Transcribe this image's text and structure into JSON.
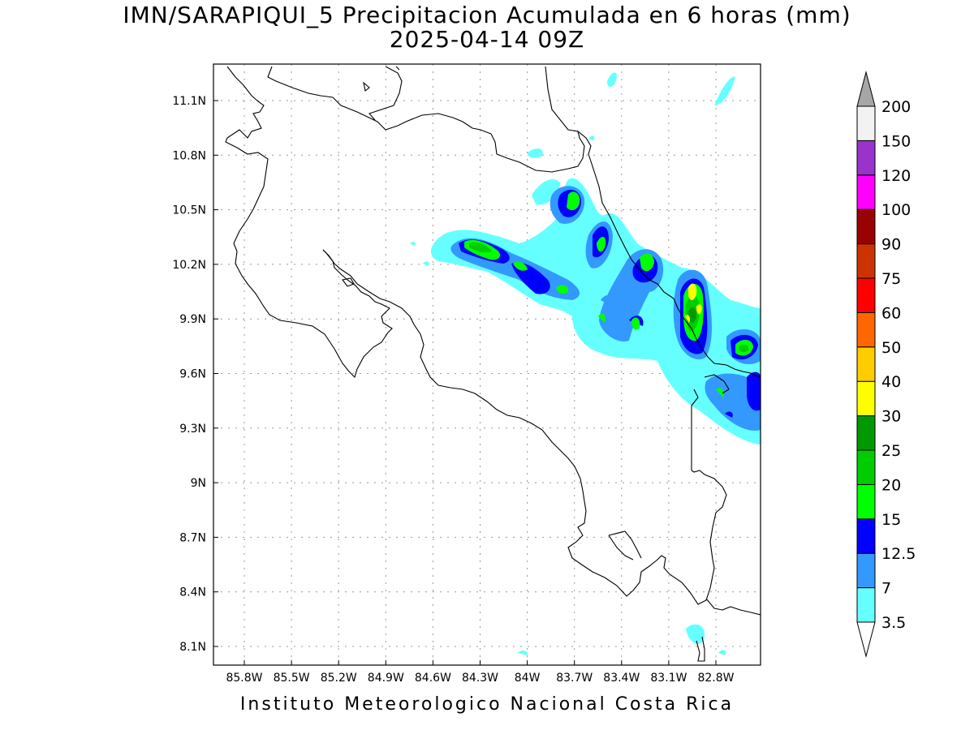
{
  "header": {
    "title": "IMN/SARAPIQUI_5 Precipitacion Acumulada en 6 horas (mm)",
    "subtitle": "2025-04-14 09Z"
  },
  "footer": {
    "credit": "Instituto Meteorologico Nacional Costa Rica"
  },
  "map": {
    "lat_labels": [
      "11.1N",
      "10.8N",
      "10.5N",
      "10.2N",
      "9.9N",
      "9.6N",
      "9.3N",
      "9N",
      "8.7N",
      "8.4N",
      "8.1N"
    ],
    "lat_values": [
      11.1,
      10.8,
      10.5,
      10.2,
      9.9,
      9.6,
      9.3,
      9.0,
      8.7,
      8.4,
      8.1
    ],
    "lon_labels": [
      "85.8W",
      "85.5W",
      "85.2W",
      "84.9W",
      "84.6W",
      "84.3W",
      "84W",
      "83.7W",
      "83.4W",
      "83.1W",
      "82.8W"
    ],
    "lon_values": [
      -85.8,
      -85.5,
      -85.2,
      -84.9,
      -84.6,
      -84.3,
      -84.0,
      -83.7,
      -83.4,
      -83.1,
      -82.8
    ],
    "grid": true
  },
  "colorbar": {
    "unit": "mm",
    "levels": [
      "3.5",
      "7",
      "12.5",
      "15",
      "20",
      "25",
      "30",
      "40",
      "50",
      "60",
      "75",
      "90",
      "100",
      "120",
      "150",
      "200"
    ],
    "colors": [
      "#66ffff",
      "#3399ff",
      "#0000ff",
      "#00ff00",
      "#00cc00",
      "#009900",
      "#ffff00",
      "#ffcc00",
      "#ff6600",
      "#ff0000",
      "#cc3300",
      "#990000",
      "#ff00ff",
      "#9933cc",
      "#f2f2f2",
      "#a6a6a6"
    ],
    "low_end_color": "#ffffff",
    "high_end_color": "#a6a6a6"
  }
}
